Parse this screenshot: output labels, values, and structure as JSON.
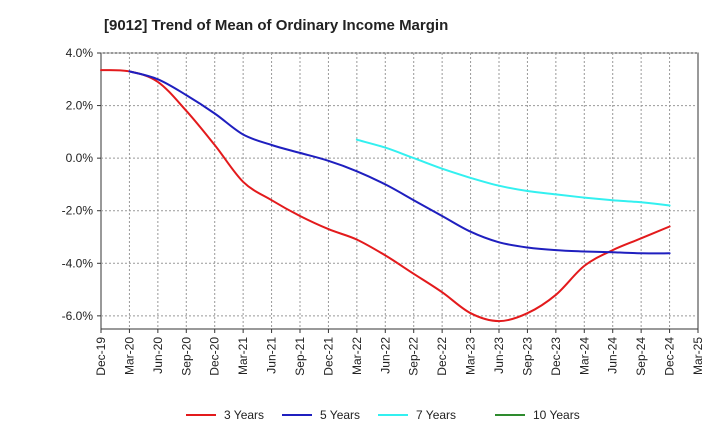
{
  "chart_data": {
    "type": "line",
    "title": "[9012]  Trend of Mean of Ordinary Income Margin",
    "xlabel": "",
    "ylabel": "",
    "ylim": [
      -6.5,
      4.0
    ],
    "yticks": [
      4.0,
      2.0,
      0.0,
      -2.0,
      -4.0,
      -6.0
    ],
    "ytick_labels": [
      "4.0%",
      "2.0%",
      "0.0%",
      "-2.0%",
      "-4.0%",
      "-6.0%"
    ],
    "x_tick_labels": [
      "Dec-19",
      "Mar-20",
      "Jun-20",
      "Sep-20",
      "Dec-20",
      "Mar-21",
      "Jun-21",
      "Sep-21",
      "Dec-21",
      "Mar-22",
      "Jun-22",
      "Sep-22",
      "Dec-22",
      "Mar-23",
      "Jun-23",
      "Sep-23",
      "Dec-23",
      "Mar-24",
      "Jun-24",
      "Sep-24",
      "Dec-24",
      "Mar-25"
    ],
    "grid": true,
    "legend_position": "bottom",
    "series": [
      {
        "name": "3 Years",
        "color": "#e31a1c",
        "points": [
          [
            0,
            3.35
          ],
          [
            1,
            3.3
          ],
          [
            2,
            2.9
          ],
          [
            3,
            1.8
          ],
          [
            4,
            0.5
          ],
          [
            5,
            -0.9
          ],
          [
            6,
            -1.6
          ],
          [
            7,
            -2.2
          ],
          [
            8,
            -2.7
          ],
          [
            9,
            -3.1
          ],
          [
            10,
            -3.7
          ],
          [
            11,
            -4.4
          ],
          [
            12,
            -5.1
          ],
          [
            13,
            -5.9
          ],
          [
            14,
            -6.2
          ],
          [
            15,
            -5.9
          ],
          [
            16,
            -5.2
          ],
          [
            17,
            -4.1
          ],
          [
            18,
            -3.5
          ],
          [
            19,
            -3.05
          ],
          [
            20,
            -2.6
          ]
        ]
      },
      {
        "name": "5 Years",
        "color": "#1f1fbf",
        "points": [
          [
            1,
            3.3
          ],
          [
            2,
            3.0
          ],
          [
            3,
            2.4
          ],
          [
            4,
            1.7
          ],
          [
            5,
            0.9
          ],
          [
            6,
            0.5
          ],
          [
            7,
            0.2
          ],
          [
            8,
            -0.1
          ],
          [
            9,
            -0.5
          ],
          [
            10,
            -1.0
          ],
          [
            11,
            -1.6
          ],
          [
            12,
            -2.2
          ],
          [
            13,
            -2.8
          ],
          [
            14,
            -3.2
          ],
          [
            15,
            -3.4
          ],
          [
            16,
            -3.5
          ],
          [
            17,
            -3.55
          ],
          [
            18,
            -3.58
          ],
          [
            19,
            -3.62
          ],
          [
            20,
            -3.62
          ]
        ]
      },
      {
        "name": "7 Years",
        "color": "#33f0f0",
        "points": [
          [
            9,
            0.7
          ],
          [
            10,
            0.4
          ],
          [
            11,
            0.0
          ],
          [
            12,
            -0.4
          ],
          [
            13,
            -0.75
          ],
          [
            14,
            -1.05
          ],
          [
            15,
            -1.25
          ],
          [
            16,
            -1.38
          ],
          [
            17,
            -1.5
          ],
          [
            18,
            -1.6
          ],
          [
            19,
            -1.68
          ],
          [
            20,
            -1.8
          ]
        ]
      },
      {
        "name": "10 Years",
        "color": "#2e8b2e",
        "points": []
      }
    ]
  }
}
